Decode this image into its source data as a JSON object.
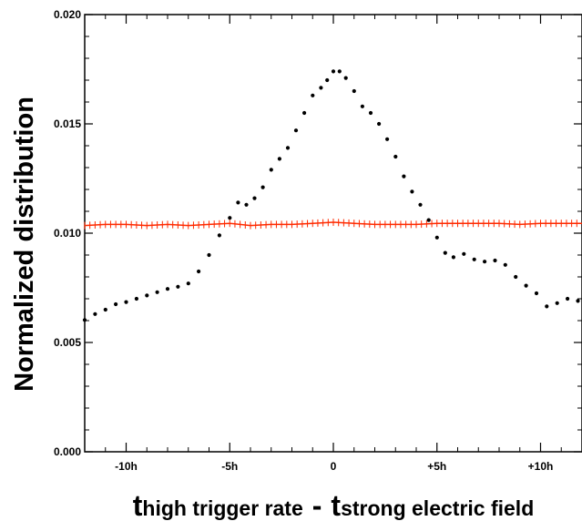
{
  "chart_data": {
    "type": "scatter",
    "title": "",
    "ylabel": "Normalized distribution",
    "xlabel": {
      "t1": "t",
      "sub1": "high trigger rate",
      "minus": "-",
      "t2": "t",
      "sub2": "strong electric field"
    },
    "xlim": [
      -12.0,
      12.0
    ],
    "ylim": [
      0.0,
      0.02
    ],
    "x_unit": "h",
    "x_ticks": [
      -10,
      -5,
      0,
      5,
      10
    ],
    "x_tick_labels": [
      "-10h",
      "-5h",
      "0",
      "+5h",
      "+10h"
    ],
    "y_ticks": [
      0.0,
      0.005,
      0.01,
      0.015,
      0.02
    ],
    "y_tick_labels": [
      "0.000",
      "0.005",
      "0.010",
      "0.015",
      "0.020"
    ],
    "grid": false,
    "legend": "none",
    "series": [
      {
        "color": "#000000",
        "marker": "dot",
        "points": [
          [
            -12.0,
            0.00603
          ],
          [
            -11.5,
            0.0063
          ],
          [
            -11.0,
            0.0065
          ],
          [
            -10.5,
            0.00675
          ],
          [
            -10.0,
            0.00685
          ],
          [
            -9.5,
            0.007
          ],
          [
            -9.0,
            0.00715
          ],
          [
            -8.5,
            0.0073
          ],
          [
            -8.0,
            0.00745
          ],
          [
            -7.5,
            0.00755
          ],
          [
            -7.0,
            0.0077
          ],
          [
            -6.5,
            0.00825
          ],
          [
            -6.0,
            0.009
          ],
          [
            -5.5,
            0.0099
          ],
          [
            -5.0,
            0.0107
          ],
          [
            -4.6,
            0.0114
          ],
          [
            -4.2,
            0.0113
          ],
          [
            -3.8,
            0.0116
          ],
          [
            -3.4,
            0.0121
          ],
          [
            -3.0,
            0.0129
          ],
          [
            -2.6,
            0.0134
          ],
          [
            -2.2,
            0.0139
          ],
          [
            -1.8,
            0.0147
          ],
          [
            -1.4,
            0.0155
          ],
          [
            -1.0,
            0.0163
          ],
          [
            -0.6,
            0.01665
          ],
          [
            -0.3,
            0.017
          ],
          [
            0.0,
            0.0174
          ],
          [
            0.3,
            0.0174
          ],
          [
            0.6,
            0.0171
          ],
          [
            1.0,
            0.0165
          ],
          [
            1.4,
            0.0158
          ],
          [
            1.8,
            0.0155
          ],
          [
            2.2,
            0.015
          ],
          [
            2.6,
            0.0143
          ],
          [
            3.0,
            0.0135
          ],
          [
            3.4,
            0.0126
          ],
          [
            3.8,
            0.0119
          ],
          [
            4.2,
            0.0113
          ],
          [
            4.6,
            0.0106
          ],
          [
            5.0,
            0.0098
          ],
          [
            5.4,
            0.0091
          ],
          [
            5.8,
            0.0089
          ],
          [
            6.3,
            0.00905
          ],
          [
            6.8,
            0.0088
          ],
          [
            7.3,
            0.0087
          ],
          [
            7.8,
            0.00875
          ],
          [
            8.3,
            0.00855
          ],
          [
            8.8,
            0.008
          ],
          [
            9.3,
            0.0076
          ],
          [
            9.8,
            0.00725
          ],
          [
            10.3,
            0.00665
          ],
          [
            10.8,
            0.0068
          ],
          [
            11.3,
            0.007
          ],
          [
            11.8,
            0.0069
          ]
        ]
      },
      {
        "color": "#ff2a00",
        "marker": "plus-line",
        "points": [
          [
            -12.0,
            0.01035
          ],
          [
            -11.0,
            0.0104
          ],
          [
            -10.0,
            0.0104
          ],
          [
            -9.0,
            0.01035
          ],
          [
            -8.0,
            0.0104
          ],
          [
            -7.0,
            0.01035
          ],
          [
            -6.0,
            0.0104
          ],
          [
            -5.0,
            0.01045
          ],
          [
            -4.0,
            0.01035
          ],
          [
            -3.0,
            0.0104
          ],
          [
            -2.0,
            0.0104
          ],
          [
            -1.0,
            0.01045
          ],
          [
            0.0,
            0.0105
          ],
          [
            1.0,
            0.01045
          ],
          [
            2.0,
            0.0104
          ],
          [
            3.0,
            0.0104
          ],
          [
            4.0,
            0.0104
          ],
          [
            5.0,
            0.01045
          ],
          [
            6.0,
            0.01045
          ],
          [
            7.0,
            0.01045
          ],
          [
            8.0,
            0.01045
          ],
          [
            9.0,
            0.0104
          ],
          [
            10.0,
            0.01045
          ],
          [
            11.0,
            0.01045
          ],
          [
            12.0,
            0.01045
          ]
        ]
      }
    ]
  }
}
